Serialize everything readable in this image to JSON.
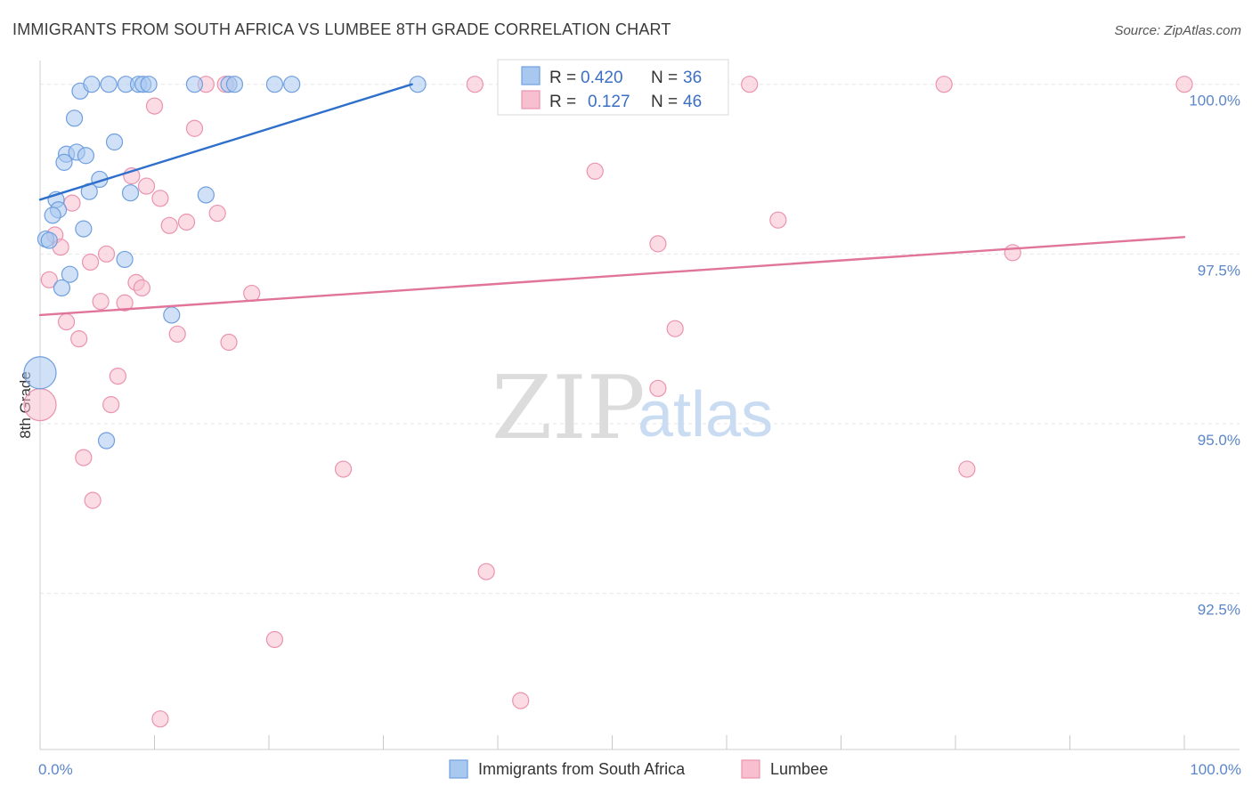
{
  "header": {
    "title": "IMMIGRANTS FROM SOUTH AFRICA VS LUMBEE 8TH GRADE CORRELATION CHART",
    "source": "Source: ZipAtlas.com"
  },
  "watermark": {
    "zip": "ZIP",
    "atlas": "atlas"
  },
  "colors": {
    "blue_fill": "#a9c8f0",
    "blue_stroke": "#6f9fde",
    "blue_line": "#2f6fcc",
    "pink_fill": "#f7bfd0",
    "pink_stroke": "#eb93ae",
    "pink_line": "#e0749a",
    "grid": "#e6e6e6"
  },
  "legend": {
    "rows": [
      {
        "r_label": "R = ",
        "r_value": "0.420",
        "n_label": "N = ",
        "n_value": "36"
      },
      {
        "r_label": "R = ",
        "r_value": "0.127",
        "n_label": "N = ",
        "n_value": "46"
      }
    ]
  },
  "bottom_legend": [
    {
      "label": "Immigrants from South Africa"
    },
    {
      "label": "Lumbee"
    }
  ],
  "chart_data": {
    "type": "scatter",
    "title": "IMMIGRANTS FROM SOUTH AFRICA VS LUMBEE 8TH GRADE CORRELATION CHART",
    "xlabel": "",
    "ylabel": "8th Grade",
    "xlim": [
      0,
      100
    ],
    "ylim": [
      90.2,
      100.35
    ],
    "y_ticks": [
      {
        "value": 100.0,
        "label": "100.0%"
      },
      {
        "value": 97.5,
        "label": "97.5%"
      },
      {
        "value": 95.0,
        "label": "95.0%"
      },
      {
        "value": 92.5,
        "label": "92.5%"
      }
    ],
    "x_tick_labels": [
      {
        "value": 0,
        "label": "0.0%"
      },
      {
        "value": 100,
        "label": "100.0%"
      }
    ],
    "x_minor_ticks": [
      0,
      10,
      20,
      30,
      40,
      50,
      60,
      70,
      80,
      90,
      100
    ],
    "grid": true,
    "legend_position": "top-center",
    "series": [
      {
        "name": "Immigrants from South Africa",
        "R": 0.42,
        "N": 36,
        "trend": {
          "x": [
            0,
            32.5
          ],
          "y": [
            98.3,
            100.0
          ]
        },
        "points": [
          {
            "x": 3.5,
            "y": 99.9
          },
          {
            "x": 4.5,
            "y": 100.0
          },
          {
            "x": 6.0,
            "y": 100.0
          },
          {
            "x": 7.5,
            "y": 100.0
          },
          {
            "x": 8.6,
            "y": 100.0
          },
          {
            "x": 9.0,
            "y": 100.0
          },
          {
            "x": 9.5,
            "y": 100.0
          },
          {
            "x": 13.5,
            "y": 100.0
          },
          {
            "x": 16.5,
            "y": 100.0
          },
          {
            "x": 17.0,
            "y": 100.0
          },
          {
            "x": 20.5,
            "y": 100.0
          },
          {
            "x": 22.0,
            "y": 100.0
          },
          {
            "x": 33.0,
            "y": 100.0
          },
          {
            "x": 3.0,
            "y": 99.5
          },
          {
            "x": 6.5,
            "y": 99.15
          },
          {
            "x": 2.3,
            "y": 98.97
          },
          {
            "x": 3.2,
            "y": 99.0
          },
          {
            "x": 4.0,
            "y": 98.95
          },
          {
            "x": 2.1,
            "y": 98.85
          },
          {
            "x": 5.2,
            "y": 98.6
          },
          {
            "x": 4.3,
            "y": 98.42
          },
          {
            "x": 7.9,
            "y": 98.4
          },
          {
            "x": 14.5,
            "y": 98.37
          },
          {
            "x": 1.4,
            "y": 98.3
          },
          {
            "x": 1.6,
            "y": 98.15
          },
          {
            "x": 1.1,
            "y": 98.07
          },
          {
            "x": 3.8,
            "y": 97.87
          },
          {
            "x": 0.5,
            "y": 97.72
          },
          {
            "x": 0.8,
            "y": 97.7
          },
          {
            "x": 7.4,
            "y": 97.42
          },
          {
            "x": 2.6,
            "y": 97.2
          },
          {
            "x": 1.9,
            "y": 97.0
          },
          {
            "x": 11.5,
            "y": 96.6
          },
          {
            "x": 0.0,
            "y": 95.75,
            "size": "large"
          },
          {
            "x": 5.8,
            "y": 94.75
          },
          {
            "x": 56.5,
            "y": 100.0
          }
        ]
      },
      {
        "name": "Lumbee",
        "R": 0.127,
        "N": 46,
        "trend": {
          "x": [
            0,
            100
          ],
          "y": [
            96.6,
            97.75
          ]
        },
        "points": [
          {
            "x": 14.5,
            "y": 100.0
          },
          {
            "x": 16.2,
            "y": 100.0
          },
          {
            "x": 38.0,
            "y": 100.0
          },
          {
            "x": 62.0,
            "y": 100.0
          },
          {
            "x": 79.0,
            "y": 100.0
          },
          {
            "x": 100.0,
            "y": 100.0
          },
          {
            "x": 10.0,
            "y": 99.68
          },
          {
            "x": 13.5,
            "y": 99.35
          },
          {
            "x": 48.5,
            "y": 98.72
          },
          {
            "x": 8.0,
            "y": 98.65
          },
          {
            "x": 9.3,
            "y": 98.5
          },
          {
            "x": 10.5,
            "y": 98.32
          },
          {
            "x": 2.8,
            "y": 98.25
          },
          {
            "x": 15.5,
            "y": 98.1
          },
          {
            "x": 64.5,
            "y": 98.0
          },
          {
            "x": 12.8,
            "y": 97.97
          },
          {
            "x": 11.3,
            "y": 97.92
          },
          {
            "x": 1.3,
            "y": 97.78
          },
          {
            "x": 54.0,
            "y": 97.65
          },
          {
            "x": 1.8,
            "y": 97.6
          },
          {
            "x": 85.0,
            "y": 97.52
          },
          {
            "x": 5.8,
            "y": 97.5
          },
          {
            "x": 4.4,
            "y": 97.38
          },
          {
            "x": 0.8,
            "y": 97.12
          },
          {
            "x": 8.4,
            "y": 97.08
          },
          {
            "x": 8.9,
            "y": 97.0
          },
          {
            "x": 18.5,
            "y": 96.92
          },
          {
            "x": 5.3,
            "y": 96.8
          },
          {
            "x": 7.4,
            "y": 96.78
          },
          {
            "x": 2.3,
            "y": 96.5
          },
          {
            "x": 55.5,
            "y": 96.4
          },
          {
            "x": 12.0,
            "y": 96.32
          },
          {
            "x": 3.4,
            "y": 96.25
          },
          {
            "x": 16.5,
            "y": 96.2
          },
          {
            "x": 6.8,
            "y": 95.7
          },
          {
            "x": 54.0,
            "y": 95.52
          },
          {
            "x": 6.2,
            "y": 95.28
          },
          {
            "x": 0.0,
            "y": 95.28,
            "size": "large"
          },
          {
            "x": 3.8,
            "y": 94.5
          },
          {
            "x": 26.5,
            "y": 94.33
          },
          {
            "x": 81.0,
            "y": 94.33
          },
          {
            "x": 4.6,
            "y": 93.87
          },
          {
            "x": 39.0,
            "y": 92.82
          },
          {
            "x": 20.5,
            "y": 91.82
          },
          {
            "x": 42.0,
            "y": 90.92
          },
          {
            "x": 10.5,
            "y": 90.65
          }
        ]
      }
    ]
  }
}
